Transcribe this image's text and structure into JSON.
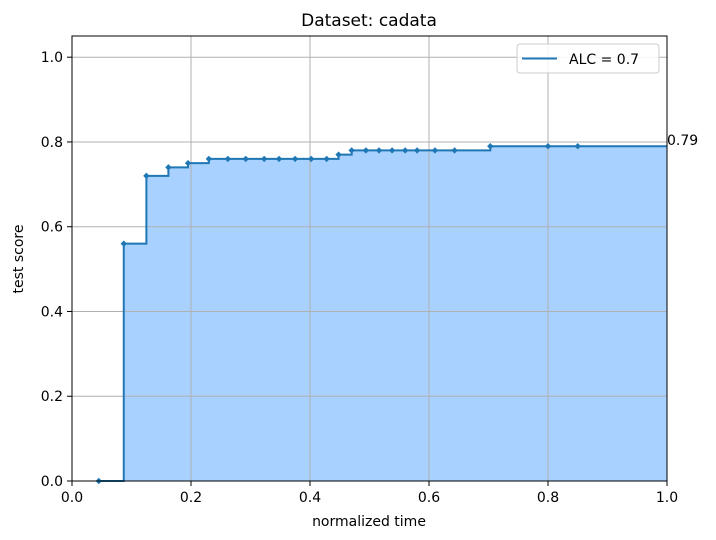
{
  "chart_data": {
    "type": "line",
    "title": "Dataset: cadata",
    "xlabel": "normalized time",
    "ylabel": "test score",
    "xlim": [
      0.0,
      1.0
    ],
    "ylim": [
      0.0,
      1.05
    ],
    "xticks": [
      0.0,
      0.2,
      0.4,
      0.6,
      0.8,
      1.0
    ],
    "xtick_labels": [
      "0.0",
      "0.2",
      "0.4",
      "0.6",
      "0.8",
      "1.0"
    ],
    "yticks": [
      0.0,
      0.2,
      0.4,
      0.6,
      0.8,
      1.0
    ],
    "ytick_labels": [
      "0.0",
      "0.2",
      "0.4",
      "0.6",
      "0.8",
      "1.0"
    ],
    "grid": true,
    "legend_position": "top-right",
    "step": "post",
    "fill": true,
    "end_annotation": "0.79",
    "series": [
      {
        "name": "ALC = 0.7",
        "color": "#1f77b4",
        "fill_color": "#a8d1ff",
        "x": [
          0.045,
          0.087,
          0.125,
          0.162,
          0.195,
          0.23,
          0.262,
          0.292,
          0.323,
          0.348,
          0.375,
          0.402,
          0.428,
          0.448,
          0.47,
          0.494,
          0.516,
          0.538,
          0.56,
          0.58,
          0.61,
          0.643,
          0.703,
          0.8,
          0.85
        ],
        "y": [
          0.0,
          0.56,
          0.72,
          0.74,
          0.75,
          0.76,
          0.76,
          0.76,
          0.76,
          0.76,
          0.76,
          0.76,
          0.76,
          0.77,
          0.78,
          0.78,
          0.78,
          0.78,
          0.78,
          0.78,
          0.78,
          0.78,
          0.79,
          0.79,
          0.79
        ]
      }
    ]
  }
}
